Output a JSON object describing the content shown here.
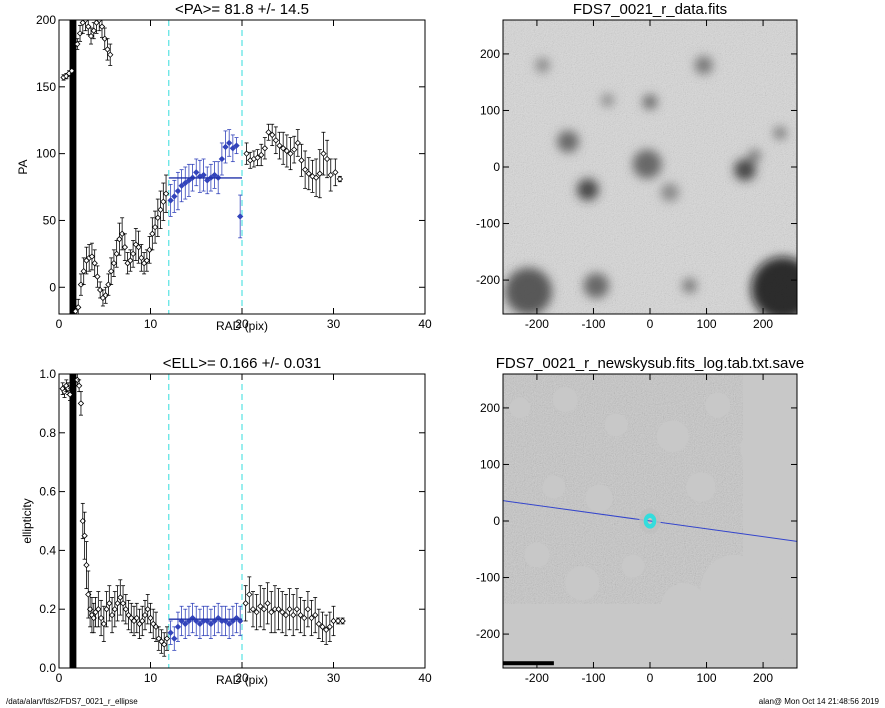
{
  "footer": {
    "left": "/data/alan/fds2/FDS7_0021_r_ellipse",
    "right": "alan@  Mon Oct 14 21:48:56 2019"
  },
  "colors": {
    "axes": "#000000",
    "data_points": "#000000",
    "fit_points": "#3344bb",
    "fit_line": "#2233aa",
    "range_lines": "#33dddd",
    "overlay_line": "#3344cc",
    "overlay_ellipses": "#33dddd"
  },
  "chart_data": [
    {
      "type": "scatter",
      "title": "<PA>=  81.8 +/-  14.5",
      "xlabel": "RAD (pix)",
      "ylabel": "PA",
      "xlim": [
        0,
        40
      ],
      "ylim": [
        -20,
        200
      ],
      "xticks": [
        0,
        10,
        20,
        30,
        40
      ],
      "yticks": [
        0,
        50,
        100,
        150,
        200
      ],
      "grid": false,
      "vlines": [
        12,
        20
      ],
      "mean_line": {
        "y": 81.8,
        "x": [
          12,
          20
        ]
      },
      "series": [
        {
          "style": "black-open-diamond",
          "x": [
            0.5,
            0.8,
            1.1,
            1.4,
            1.8,
            2.1,
            2.4,
            2.7,
            3.0,
            3.3,
            3.6,
            3.9,
            4.2,
            4.5,
            4.8,
            5.1,
            5.4,
            5.7,
            6.0,
            6.3,
            6.6,
            6.9,
            7.2,
            7.5,
            7.8,
            8.1,
            8.4,
            8.7,
            9.0,
            9.3,
            9.6,
            9.9,
            10.2,
            10.5,
            10.8,
            11.1,
            11.4,
            11.7,
            20.5,
            20.9,
            21.3,
            21.7,
            22.1,
            22.5,
            22.9,
            23.3,
            23.7,
            24.1,
            24.5,
            24.9,
            25.3,
            25.7,
            26.1,
            26.5,
            26.9,
            27.3,
            27.7,
            28.1,
            28.5,
            28.9,
            29.3,
            29.7,
            30.2,
            30.7
          ],
          "y": [
            157,
            158,
            160,
            162,
            -18,
            -15,
            2,
            12,
            20,
            22,
            23,
            18,
            8,
            -2,
            -8,
            -6,
            2,
            12,
            18,
            25,
            36,
            40,
            30,
            18,
            20,
            25,
            32,
            30,
            22,
            18,
            20,
            28,
            40,
            45,
            52,
            58,
            64,
            70,
            100,
            95,
            96,
            97,
            99,
            104,
            116,
            114,
            110,
            106,
            104,
            102,
            100,
            103,
            108,
            95,
            88,
            85,
            83,
            82,
            85,
            100,
            96,
            84,
            86,
            81
          ],
          "err": [
            2,
            2,
            2,
            2,
            4,
            6,
            8,
            10,
            10,
            10,
            10,
            10,
            8,
            6,
            6,
            6,
            8,
            10,
            10,
            10,
            12,
            12,
            10,
            8,
            8,
            10,
            12,
            12,
            10,
            8,
            8,
            10,
            12,
            12,
            14,
            14,
            14,
            14,
            8,
            6,
            6,
            6,
            8,
            8,
            6,
            8,
            10,
            10,
            12,
            12,
            12,
            10,
            10,
            12,
            14,
            12,
            12,
            14,
            18,
            16,
            14,
            12,
            10,
            2
          ]
        },
        {
          "style": "black-open-diamond",
          "x": [
            2.0,
            2.3,
            2.6,
            2.9,
            3.2,
            3.5,
            3.8,
            4.1,
            4.4,
            4.7,
            5.0,
            5.3,
            5.6
          ],
          "y": [
            182,
            190,
            198,
            200,
            195,
            188,
            192,
            198,
            200,
            195,
            186,
            178,
            174
          ],
          "err": [
            4,
            6,
            8,
            8,
            6,
            6,
            6,
            8,
            8,
            8,
            8,
            8,
            8
          ]
        },
        {
          "style": "blue-filled-diamond",
          "x": [
            12.2,
            12.6,
            13.0,
            13.4,
            13.8,
            14.2,
            14.6,
            15.0,
            15.4,
            15.8,
            16.2,
            16.6,
            17.0,
            17.4,
            17.8,
            18.2,
            18.6,
            19.0,
            19.4,
            19.8
          ],
          "y": [
            65,
            68,
            72,
            76,
            78,
            80,
            82,
            86,
            83,
            84,
            80,
            82,
            84,
            82,
            96,
            105,
            108,
            104,
            106,
            53
          ],
          "err": [
            12,
            12,
            14,
            12,
            12,
            12,
            10,
            10,
            12,
            12,
            10,
            10,
            10,
            12,
            12,
            12,
            10,
            10,
            6,
            16
          ]
        }
      ]
    },
    {
      "type": "scatter",
      "title": "<ELL>= 0.166 +/-  0.031",
      "xlabel": "RAD (pix)",
      "ylabel": "ellipticity",
      "xlim": [
        0,
        40
      ],
      "ylim": [
        0,
        1
      ],
      "xticks": [
        0,
        10,
        20,
        30,
        40
      ],
      "yticks": [
        0.0,
        0.2,
        0.4,
        0.6,
        0.8,
        1.0
      ],
      "grid": false,
      "vlines": [
        12,
        20
      ],
      "mean_line": {
        "y": 0.166,
        "x": [
          12,
          20
        ]
      },
      "series": [
        {
          "style": "black-open-diamond",
          "x": [
            0.4,
            0.6,
            0.8,
            1.0,
            1.2,
            2.0,
            2.2,
            2.4,
            2.6,
            2.8,
            3.0,
            3.2,
            3.4,
            3.6,
            3.8,
            4.0,
            4.3,
            4.6,
            4.9,
            5.2,
            5.5,
            5.8,
            6.1,
            6.4,
            6.7,
            7.0,
            7.3,
            7.6,
            7.9,
            8.2,
            8.5,
            8.8,
            9.1,
            9.4,
            9.7,
            10.0,
            10.3,
            10.6,
            10.9,
            11.2,
            11.5,
            11.8,
            20.4,
            20.8,
            21.2,
            21.6,
            22.0,
            22.4,
            22.8,
            23.2,
            23.6,
            24.0,
            24.4,
            24.8,
            25.2,
            25.6,
            26.0,
            26.4,
            26.8,
            27.2,
            27.6,
            28.0,
            28.4,
            28.8,
            29.2,
            29.6,
            30.0,
            30.5,
            31.0
          ],
          "y": [
            0.95,
            0.94,
            0.96,
            0.95,
            0.93,
            0.98,
            0.96,
            0.9,
            0.5,
            0.45,
            0.35,
            0.25,
            0.2,
            0.18,
            0.17,
            0.19,
            0.2,
            0.17,
            0.15,
            0.2,
            0.22,
            0.18,
            0.2,
            0.22,
            0.24,
            0.22,
            0.2,
            0.18,
            0.17,
            0.16,
            0.17,
            0.15,
            0.16,
            0.18,
            0.2,
            0.17,
            0.15,
            0.14,
            0.1,
            0.09,
            0.08,
            0.1,
            0.22,
            0.25,
            0.2,
            0.19,
            0.21,
            0.2,
            0.22,
            0.19,
            0.2,
            0.2,
            0.19,
            0.18,
            0.2,
            0.18,
            0.2,
            0.18,
            0.17,
            0.2,
            0.17,
            0.18,
            0.15,
            0.14,
            0.13,
            0.14,
            0.16,
            0.16,
            0.16
          ],
          "err": [
            0.02,
            0.02,
            0.02,
            0.02,
            0.02,
            0.02,
            0.02,
            0.04,
            0.06,
            0.08,
            0.08,
            0.08,
            0.06,
            0.06,
            0.05,
            0.05,
            0.06,
            0.06,
            0.06,
            0.06,
            0.06,
            0.06,
            0.06,
            0.06,
            0.06,
            0.06,
            0.05,
            0.05,
            0.05,
            0.05,
            0.05,
            0.05,
            0.05,
            0.05,
            0.05,
            0.05,
            0.05,
            0.05,
            0.04,
            0.04,
            0.04,
            0.04,
            0.06,
            0.06,
            0.06,
            0.06,
            0.07,
            0.07,
            0.07,
            0.07,
            0.08,
            0.07,
            0.07,
            0.07,
            0.07,
            0.07,
            0.07,
            0.06,
            0.06,
            0.06,
            0.06,
            0.06,
            0.05,
            0.05,
            0.05,
            0.05,
            0.05,
            0.01,
            0.01
          ]
        },
        {
          "style": "blue-filled-diamond",
          "x": [
            12.2,
            12.6,
            13.0,
            13.4,
            13.8,
            14.2,
            14.6,
            15.0,
            15.4,
            15.8,
            16.2,
            16.6,
            17.0,
            17.4,
            17.8,
            18.2,
            18.6,
            19.0,
            19.4,
            19.8
          ],
          "y": [
            0.12,
            0.1,
            0.14,
            0.16,
            0.15,
            0.16,
            0.17,
            0.16,
            0.15,
            0.16,
            0.16,
            0.15,
            0.16,
            0.17,
            0.16,
            0.16,
            0.15,
            0.16,
            0.17,
            0.16
          ],
          "err": [
            0.04,
            0.04,
            0.05,
            0.05,
            0.05,
            0.05,
            0.05,
            0.05,
            0.05,
            0.05,
            0.05,
            0.05,
            0.05,
            0.05,
            0.05,
            0.05,
            0.05,
            0.05,
            0.05,
            0.05
          ]
        }
      ]
    },
    {
      "type": "heatmap",
      "title": "FDS7_0021_r_data.fits",
      "xlim": [
        -260,
        260
      ],
      "ylim": [
        -260,
        260
      ],
      "xticks": [
        -200,
        -100,
        0,
        100,
        200
      ],
      "yticks": [
        -200,
        -100,
        0,
        100,
        200
      ],
      "colormap": "grayscale-inverted",
      "sources": [
        {
          "x": -190,
          "y": 180,
          "r": 8,
          "level": 0.4
        },
        {
          "x": 95,
          "y": 180,
          "r": 10,
          "level": 0.5
        },
        {
          "x": 0,
          "y": 115,
          "r": 8,
          "level": 0.6
        },
        {
          "x": -75,
          "y": 118,
          "r": 7,
          "level": 0.4
        },
        {
          "x": -145,
          "y": 45,
          "r": 12,
          "level": 0.6
        },
        {
          "x": -5,
          "y": 5,
          "r": 16,
          "level": 0.6
        },
        {
          "x": 35,
          "y": -45,
          "r": 10,
          "level": 0.4
        },
        {
          "x": -110,
          "y": -40,
          "r": 12,
          "level": 0.8
        },
        {
          "x": 168,
          "y": -5,
          "r": 12,
          "level": 0.8
        },
        {
          "x": 185,
          "y": 20,
          "r": 7,
          "level": 0.5
        },
        {
          "x": 230,
          "y": 60,
          "r": 7,
          "level": 0.5
        },
        {
          "x": -95,
          "y": -210,
          "r": 14,
          "level": 0.6
        },
        {
          "x": -215,
          "y": -220,
          "r": 26,
          "level": 0.7
        },
        {
          "x": 235,
          "y": -215,
          "r": 35,
          "level": 1.0
        },
        {
          "x": 70,
          "y": -210,
          "r": 8,
          "level": 0.5
        }
      ]
    },
    {
      "type": "heatmap",
      "title": "FDS7_0021_r_newskysub.fits_log.tab.txt.save",
      "xlim": [
        -260,
        260
      ],
      "ylim": [
        -260,
        260
      ],
      "xticks": [
        -200,
        -100,
        0,
        100,
        200
      ],
      "yticks": [
        -200,
        -100,
        0,
        100,
        200
      ],
      "colormap": "grayscale",
      "overlay_line": {
        "x": [
          -260,
          260
        ],
        "y": [
          36,
          -36
        ]
      },
      "overlay_ellipses": {
        "x": 0,
        "y": 0,
        "semi_major": [
          6,
          8,
          10,
          12,
          14,
          16,
          18
        ],
        "ell": 0.166,
        "pa": 81.8
      }
    }
  ]
}
